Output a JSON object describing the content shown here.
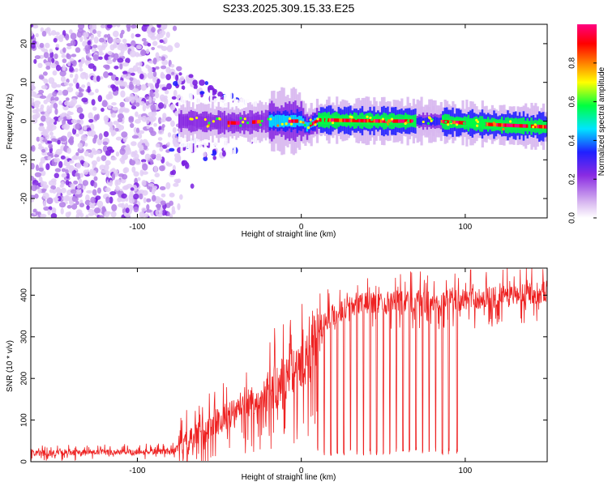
{
  "title": "S233.2025.309.15.33.E25",
  "chart_data": [
    {
      "type": "heatmap",
      "name": "spectrogram",
      "xlabel": "Height of straight line (km)",
      "ylabel": "Frequency (Hz)",
      "xlim": [
        -165,
        150
      ],
      "ylim": [
        -25,
        25
      ],
      "xticks": [
        -100,
        0,
        100
      ],
      "yticks": [
        -20,
        -10,
        0,
        10,
        20
      ],
      "xtick_labels": [
        "-100",
        "0",
        "100"
      ],
      "ytick_labels": [
        "-20",
        "-10",
        "0",
        "10",
        "20"
      ],
      "colorbar": {
        "label": "Normalized spectral amplitude",
        "range": [
          0,
          1
        ],
        "ticks": [
          0.0,
          0.2,
          0.4,
          0.6,
          0.8
        ],
        "tick_labels": [
          "0.0",
          "0.2",
          "0.4",
          "0.6",
          "0.8"
        ],
        "colors": [
          "#ffffff",
          "#d8b8f0",
          "#8a2be2",
          "#2020ff",
          "#00e5ff",
          "#00ff40",
          "#ffff00",
          "#ff8000",
          "#ff0000",
          "#ff0080"
        ]
      },
      "description_series": {
        "noise_region_x": [
          -165,
          -75
        ],
        "signal_center_hz": [
          [
            -70,
            0.0
          ],
          [
            -40,
            -0.5
          ],
          [
            -20,
            0.0
          ],
          [
            0,
            0.0
          ],
          [
            3,
            -1.5
          ],
          [
            10,
            0.3
          ],
          [
            50,
            0.0
          ],
          [
            80,
            0.0
          ],
          [
            100,
            -0.5
          ],
          [
            120,
            -1.0
          ],
          [
            150,
            -1.5
          ]
        ]
      }
    },
    {
      "type": "line",
      "name": "snr",
      "xlabel": "Height of straight line (km)",
      "ylabel": "SNR (10 * v/v)",
      "xlim": [
        -165,
        150
      ],
      "ylim": [
        0,
        465
      ],
      "xticks": [
        -100,
        0,
        100
      ],
      "yticks": [
        0,
        100,
        200,
        300,
        400
      ],
      "xtick_labels": [
        "-100",
        "0",
        "100"
      ],
      "ytick_labels": [
        "0",
        "100",
        "200",
        "300",
        "400"
      ],
      "color": "#ee2222",
      "trend_x": [
        -165,
        -80,
        -70,
        -60,
        -50,
        -40,
        -30,
        -20,
        -10,
        0,
        5,
        10,
        15,
        20,
        30,
        40,
        60,
        80,
        100,
        120,
        140,
        150
      ],
      "trend_y": [
        20,
        25,
        40,
        70,
        100,
        120,
        140,
        170,
        200,
        230,
        300,
        330,
        340,
        355,
        375,
        380,
        385,
        385,
        390,
        395,
        405,
        410
      ],
      "dropouts_x": [
        10,
        14,
        18,
        22,
        26,
        30,
        34,
        38,
        42,
        46,
        50,
        54,
        58,
        62,
        66,
        70,
        74,
        78,
        82,
        86,
        90,
        95
      ],
      "dropout_min_y": 15
    }
  ]
}
